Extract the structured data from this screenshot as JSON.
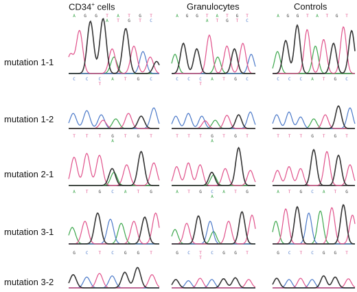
{
  "columns": [
    {
      "id": "cd34",
      "label_main": "CD34",
      "label_sup": "+",
      "label_rest": " cells"
    },
    {
      "id": "gran",
      "label_main": "Granulocytes"
    },
    {
      "id": "ctrl",
      "label_main": "Controls"
    }
  ],
  "rows": [
    {
      "id": "m11",
      "label": "mutation 1-1"
    },
    {
      "id": "m12",
      "label": "mutation 1-2"
    },
    {
      "id": "m21",
      "label": "mutation 2-1"
    },
    {
      "id": "m31",
      "label": "mutation 3-1"
    },
    {
      "id": "m32",
      "label": "mutation 3-2"
    }
  ],
  "base_colors": {
    "A": "#3aa64a",
    "G": "#333333",
    "T": "#e0508a",
    "C": "#4a78c8"
  },
  "sequences": [
    {
      "row": "m11",
      "col": "cd34",
      "main": [
        "A",
        "G",
        "G",
        "T",
        "A",
        "T",
        "G",
        "T"
      ],
      "alt": [
        "",
        "",
        "",
        "A",
        "T",
        "G",
        "T",
        "C"
      ]
    },
    {
      "row": "m11",
      "col": "gran",
      "main": [
        "A",
        "G",
        "G",
        "T",
        "A",
        "T",
        "G",
        "T"
      ],
      "alt": [
        "",
        "",
        "",
        "A",
        "T",
        "G",
        "T",
        "C"
      ]
    },
    {
      "row": "m11",
      "col": "ctrl",
      "main": [
        "A",
        "G",
        "G",
        "T",
        "A",
        "T",
        "G",
        "T"
      ],
      "alt": []
    },
    {
      "row": "m12",
      "col": "cd34",
      "main": [
        "C",
        "C",
        "C",
        "A",
        "T",
        "G",
        "C"
      ],
      "alt": [
        "",
        "",
        "T",
        "",
        "",
        "",
        ""
      ]
    },
    {
      "row": "m12",
      "col": "gran",
      "main": [
        "C",
        "C",
        "C",
        "A",
        "T",
        "G",
        "C"
      ],
      "alt": [
        "",
        "",
        "T",
        "",
        "",
        "",
        ""
      ]
    },
    {
      "row": "m12",
      "col": "ctrl",
      "main": [
        "C",
        "C",
        "C",
        "A",
        "T",
        "G",
        "C"
      ],
      "alt": []
    },
    {
      "row": "m21",
      "col": "cd34",
      "main": [
        "T",
        "T",
        "T",
        "G",
        "T",
        "G",
        "T"
      ],
      "alt": [
        "",
        "",
        "",
        "A",
        "",
        "",
        ""
      ]
    },
    {
      "row": "m21",
      "col": "gran",
      "main": [
        "T",
        "T",
        "T",
        "G",
        "T",
        "G",
        "T"
      ],
      "alt": [
        "",
        "",
        "",
        "A",
        "",
        "",
        ""
      ]
    },
    {
      "row": "m21",
      "col": "ctrl",
      "main": [
        "T",
        "T",
        "T",
        "G",
        "T",
        "G",
        "T"
      ],
      "alt": []
    },
    {
      "row": "m31",
      "col": "cd34",
      "main": [
        "A",
        "T",
        "G",
        "C",
        "A",
        "T",
        "G"
      ],
      "alt": []
    },
    {
      "row": "m31",
      "col": "gran",
      "main": [
        "A",
        "T",
        "G",
        "C",
        "A",
        "T",
        "G"
      ],
      "alt": [
        "",
        "",
        "",
        "A",
        "",
        "",
        ""
      ]
    },
    {
      "row": "m31",
      "col": "ctrl",
      "main": [
        "A",
        "T",
        "G",
        "C",
        "A",
        "T",
        "G"
      ],
      "alt": []
    },
    {
      "row": "m32",
      "col": "cd34",
      "main": [
        "G",
        "C",
        "T",
        "C",
        "G",
        "G",
        "T"
      ],
      "alt": []
    },
    {
      "row": "m32",
      "col": "gran",
      "main": [
        "G",
        "C",
        "T",
        "C",
        "G",
        "G",
        "T"
      ],
      "alt": [
        "",
        "",
        "T",
        "",
        "",
        "",
        ""
      ]
    },
    {
      "row": "m32",
      "col": "ctrl",
      "main": [
        "G",
        "C",
        "T",
        "C",
        "G",
        "G",
        "T"
      ],
      "alt": []
    }
  ],
  "traces": [
    {
      "row": "m11",
      "col": "cd34",
      "peaks": [
        {
          "b": "T",
          "x": 0.02,
          "h": 0.35
        },
        {
          "b": "T",
          "x": 0.12,
          "h": 0.78
        },
        {
          "b": "G",
          "x": 0.24,
          "h": 0.95
        },
        {
          "b": "G",
          "x": 0.38,
          "h": 1.0
        },
        {
          "b": "T",
          "x": 0.48,
          "h": 0.45
        },
        {
          "b": "A",
          "x": 0.5,
          "h": 0.3
        },
        {
          "b": "G",
          "x": 0.63,
          "h": 0.82
        },
        {
          "b": "T",
          "x": 0.72,
          "h": 0.5
        },
        {
          "b": "C",
          "x": 0.82,
          "h": 0.4
        },
        {
          "b": "T",
          "x": 0.9,
          "h": 0.3
        },
        {
          "b": "G",
          "x": 0.97,
          "h": 0.22
        }
      ]
    },
    {
      "row": "m11",
      "col": "gran",
      "peaks": [
        {
          "b": "A",
          "x": 0.04,
          "h": 0.35
        },
        {
          "b": "G",
          "x": 0.14,
          "h": 0.55
        },
        {
          "b": "G",
          "x": 0.3,
          "h": 0.45
        },
        {
          "b": "T",
          "x": 0.45,
          "h": 0.7
        },
        {
          "b": "A",
          "x": 0.55,
          "h": 0.3
        },
        {
          "b": "T",
          "x": 0.66,
          "h": 0.5
        },
        {
          "b": "G",
          "x": 0.75,
          "h": 0.45
        },
        {
          "b": "T",
          "x": 0.85,
          "h": 0.55
        },
        {
          "b": "C",
          "x": 0.95,
          "h": 0.35
        }
      ]
    },
    {
      "row": "m11",
      "col": "ctrl",
      "peaks": [
        {
          "b": "A",
          "x": 0.06,
          "h": 0.4
        },
        {
          "b": "G",
          "x": 0.16,
          "h": 0.6
        },
        {
          "b": "G",
          "x": 0.3,
          "h": 0.88
        },
        {
          "b": "T",
          "x": 0.42,
          "h": 0.8
        },
        {
          "b": "A",
          "x": 0.52,
          "h": 0.5
        },
        {
          "b": "T",
          "x": 0.62,
          "h": 0.62
        },
        {
          "b": "G",
          "x": 0.74,
          "h": 0.55
        },
        {
          "b": "T",
          "x": 0.86,
          "h": 0.85
        },
        {
          "b": "G",
          "x": 0.96,
          "h": 0.78
        }
      ]
    },
    {
      "row": "m12",
      "col": "cd34",
      "peaks": [
        {
          "b": "C",
          "x": 0.05,
          "h": 0.55
        },
        {
          "b": "C",
          "x": 0.2,
          "h": 0.65
        },
        {
          "b": "C",
          "x": 0.36,
          "h": 0.5
        },
        {
          "b": "T",
          "x": 0.38,
          "h": 0.3
        },
        {
          "b": "A",
          "x": 0.52,
          "h": 0.35
        },
        {
          "b": "T",
          "x": 0.66,
          "h": 0.55
        },
        {
          "b": "G",
          "x": 0.8,
          "h": 0.45
        },
        {
          "b": "C",
          "x": 0.94,
          "h": 0.75
        }
      ]
    },
    {
      "row": "m12",
      "col": "gran",
      "peaks": [
        {
          "b": "C",
          "x": 0.05,
          "h": 0.45
        },
        {
          "b": "C",
          "x": 0.2,
          "h": 0.55
        },
        {
          "b": "C",
          "x": 0.36,
          "h": 0.45
        },
        {
          "b": "T",
          "x": 0.4,
          "h": 0.28
        },
        {
          "b": "A",
          "x": 0.52,
          "h": 0.3
        },
        {
          "b": "T",
          "x": 0.66,
          "h": 0.48
        },
        {
          "b": "G",
          "x": 0.8,
          "h": 0.5
        },
        {
          "b": "C",
          "x": 0.94,
          "h": 0.6
        }
      ]
    },
    {
      "row": "m12",
      "col": "ctrl",
      "peaks": [
        {
          "b": "C",
          "x": 0.05,
          "h": 0.5
        },
        {
          "b": "C",
          "x": 0.2,
          "h": 0.6
        },
        {
          "b": "C",
          "x": 0.34,
          "h": 0.42
        },
        {
          "b": "A",
          "x": 0.5,
          "h": 0.35
        },
        {
          "b": "T",
          "x": 0.64,
          "h": 0.5
        },
        {
          "b": "G",
          "x": 0.8,
          "h": 0.82
        },
        {
          "b": "C",
          "x": 0.94,
          "h": 0.75
        }
      ]
    },
    {
      "row": "m21",
      "col": "cd34",
      "peaks": [
        {
          "b": "T",
          "x": 0.06,
          "h": 0.75
        },
        {
          "b": "T",
          "x": 0.2,
          "h": 0.85
        },
        {
          "b": "T",
          "x": 0.34,
          "h": 0.8
        },
        {
          "b": "G",
          "x": 0.48,
          "h": 0.45
        },
        {
          "b": "A",
          "x": 0.5,
          "h": 0.35
        },
        {
          "b": "T",
          "x": 0.64,
          "h": 0.55
        },
        {
          "b": "G",
          "x": 0.8,
          "h": 0.9
        },
        {
          "b": "T",
          "x": 0.94,
          "h": 0.6
        }
      ]
    },
    {
      "row": "m21",
      "col": "gran",
      "peaks": [
        {
          "b": "T",
          "x": 0.06,
          "h": 0.5
        },
        {
          "b": "T",
          "x": 0.2,
          "h": 0.6
        },
        {
          "b": "T",
          "x": 0.34,
          "h": 0.55
        },
        {
          "b": "G",
          "x": 0.48,
          "h": 0.35
        },
        {
          "b": "A",
          "x": 0.5,
          "h": 0.28
        },
        {
          "b": "T",
          "x": 0.64,
          "h": 0.45
        },
        {
          "b": "G",
          "x": 0.8,
          "h": 1.0
        },
        {
          "b": "T",
          "x": 0.94,
          "h": 0.4
        }
      ]
    },
    {
      "row": "m21",
      "col": "ctrl",
      "peaks": [
        {
          "b": "T",
          "x": 0.06,
          "h": 0.4
        },
        {
          "b": "T",
          "x": 0.2,
          "h": 0.5
        },
        {
          "b": "T",
          "x": 0.34,
          "h": 0.45
        },
        {
          "b": "G",
          "x": 0.5,
          "h": 0.95
        },
        {
          "b": "T",
          "x": 0.66,
          "h": 0.9
        },
        {
          "b": "G",
          "x": 0.8,
          "h": 0.8
        },
        {
          "b": "T",
          "x": 0.94,
          "h": 0.55
        }
      ]
    },
    {
      "row": "m31",
      "col": "cd34",
      "peaks": [
        {
          "b": "A",
          "x": 0.04,
          "h": 0.4
        },
        {
          "b": "T",
          "x": 0.18,
          "h": 0.55
        },
        {
          "b": "G",
          "x": 0.32,
          "h": 0.75
        },
        {
          "b": "C",
          "x": 0.46,
          "h": 0.6
        },
        {
          "b": "A",
          "x": 0.58,
          "h": 0.5
        },
        {
          "b": "T",
          "x": 0.72,
          "h": 0.55
        },
        {
          "b": "G",
          "x": 0.84,
          "h": 0.65
        },
        {
          "b": "T",
          "x": 0.96,
          "h": 0.75
        }
      ]
    },
    {
      "row": "m31",
      "col": "gran",
      "peaks": [
        {
          "b": "A",
          "x": 0.04,
          "h": 0.35
        },
        {
          "b": "T",
          "x": 0.18,
          "h": 0.5
        },
        {
          "b": "G",
          "x": 0.32,
          "h": 0.68
        },
        {
          "b": "C",
          "x": 0.46,
          "h": 0.55
        },
        {
          "b": "A",
          "x": 0.5,
          "h": 0.3
        },
        {
          "b": "T",
          "x": 0.68,
          "h": 0.55
        },
        {
          "b": "G",
          "x": 0.84,
          "h": 0.78
        },
        {
          "b": "T",
          "x": 0.96,
          "h": 0.7
        }
      ]
    },
    {
      "row": "m31",
      "col": "ctrl",
      "peaks": [
        {
          "b": "A",
          "x": 0.04,
          "h": 0.55
        },
        {
          "b": "T",
          "x": 0.16,
          "h": 0.85
        },
        {
          "b": "G",
          "x": 0.3,
          "h": 0.9
        },
        {
          "b": "C",
          "x": 0.44,
          "h": 0.75
        },
        {
          "b": "A",
          "x": 0.58,
          "h": 0.8
        },
        {
          "b": "T",
          "x": 0.72,
          "h": 0.88
        },
        {
          "b": "G",
          "x": 0.86,
          "h": 0.95
        },
        {
          "b": "T",
          "x": 0.97,
          "h": 0.7
        }
      ]
    },
    {
      "row": "m32",
      "col": "cd34",
      "peaks": [
        {
          "b": "G",
          "x": 0.05,
          "h": 0.55
        },
        {
          "b": "C",
          "x": 0.2,
          "h": 0.45
        },
        {
          "b": "T",
          "x": 0.34,
          "h": 0.6
        },
        {
          "b": "C",
          "x": 0.48,
          "h": 0.5
        },
        {
          "b": "G",
          "x": 0.62,
          "h": 0.65
        },
        {
          "b": "G",
          "x": 0.76,
          "h": 0.85
        },
        {
          "b": "T",
          "x": 0.92,
          "h": 0.55
        }
      ]
    },
    {
      "row": "m32",
      "col": "gran",
      "peaks": [
        {
          "b": "G",
          "x": 0.05,
          "h": 0.35
        },
        {
          "b": "C",
          "x": 0.2,
          "h": 0.3
        },
        {
          "b": "T",
          "x": 0.34,
          "h": 0.4
        },
        {
          "b": "C",
          "x": 0.48,
          "h": 0.35
        },
        {
          "b": "G",
          "x": 0.62,
          "h": 0.38
        },
        {
          "b": "G",
          "x": 0.76,
          "h": 0.42
        },
        {
          "b": "T",
          "x": 0.92,
          "h": 0.35
        }
      ]
    },
    {
      "row": "m32",
      "col": "ctrl",
      "peaks": [
        {
          "b": "G",
          "x": 0.05,
          "h": 0.4
        },
        {
          "b": "C",
          "x": 0.2,
          "h": 0.35
        },
        {
          "b": "T",
          "x": 0.34,
          "h": 0.4
        },
        {
          "b": "C",
          "x": 0.48,
          "h": 0.35
        },
        {
          "b": "G",
          "x": 0.62,
          "h": 0.5
        },
        {
          "b": "G",
          "x": 0.76,
          "h": 0.45
        },
        {
          "b": "T",
          "x": 0.92,
          "h": 0.38
        }
      ]
    }
  ]
}
